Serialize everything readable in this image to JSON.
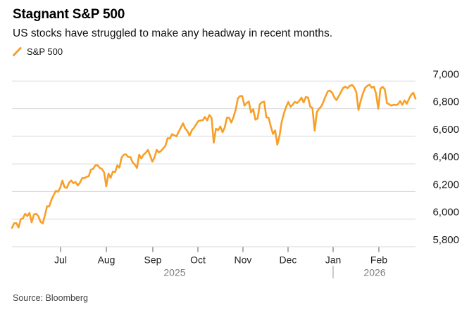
{
  "header": {
    "title": "Stagnant S&P 500",
    "subtitle": "US stocks have struggled to make any headway in recent months."
  },
  "legend": {
    "series_label": "S&P 500",
    "marker": "slash-icon"
  },
  "footer": {
    "source": "Source: Bloomberg"
  },
  "colors": {
    "line": "#F89F28",
    "grid": "#D7D7D7",
    "tick": "#5A5A5A",
    "month_label": "#1F1F1F",
    "year_label": "#7B7B7B",
    "year_divider": "#9A9A9A",
    "y_label": "#1A1A1A",
    "background": "#FFFFFF"
  },
  "chart_data": {
    "type": "line",
    "title": "Stagnant S&P 500",
    "subtitle": "US stocks have struggled to make any headway in recent months.",
    "legend_position": "top-left",
    "grid": true,
    "x_range_visible": "Jun 2025 - Feb 2026",
    "ylim": [
      5800,
      7000
    ],
    "y_axis": {
      "side": "right",
      "ticks": [
        {
          "value": 7000,
          "label": "7,000"
        },
        {
          "value": 6800,
          "label": "6,800"
        },
        {
          "value": 6600,
          "label": "6,600"
        },
        {
          "value": 6400,
          "label": "6,400"
        },
        {
          "value": 6200,
          "label": "6,200"
        },
        {
          "value": 6000,
          "label": "6,000"
        },
        {
          "value": 5800,
          "label": "5,800"
        }
      ]
    },
    "x_axis": {
      "months": [
        {
          "label": "Jul",
          "f": 0.1204
        },
        {
          "label": "Aug",
          "f": 0.2339
        },
        {
          "label": "Sep",
          "f": 0.349
        },
        {
          "label": "Oct",
          "f": 0.4607
        },
        {
          "label": "Nov",
          "f": 0.5724
        },
        {
          "label": "Dec",
          "f": 0.6841
        },
        {
          "label": "Jan",
          "f": 0.7958
        },
        {
          "label": "Feb",
          "f": 0.9092
        }
      ],
      "years": [
        {
          "label": "2025",
          "f": 0.4031
        },
        {
          "label": "2026",
          "f": 0.8988
        }
      ],
      "year_divider_f": 0.7958
    },
    "series": [
      {
        "name": "S&P 500",
        "color": "#F89F28",
        "values": [
          5936,
          5970,
          5971,
          5939,
          6000,
          6006,
          6039,
          6022,
          6045,
          5977,
          6033,
          6039,
          6022,
          5981,
          5968,
          6025,
          6092,
          6092,
          6141,
          6173,
          6205,
          6198,
          6227,
          6279,
          6230,
          6226,
          6263,
          6280,
          6260,
          6269,
          6244,
          6264,
          6297,
          6297,
          6306,
          6310,
          6359,
          6363,
          6389,
          6390,
          6371,
          6363,
          6339,
          6238,
          6330,
          6299,
          6345,
          6340,
          6389,
          6373,
          6446,
          6467,
          6469,
          6450,
          6449,
          6411,
          6396,
          6370,
          6467,
          6439,
          6466,
          6481,
          6502,
          6460,
          6416,
          6448,
          6502,
          6482,
          6495,
          6513,
          6532,
          6587,
          6584,
          6615,
          6607,
          6600,
          6632,
          6664,
          6694,
          6657,
          6638,
          6605,
          6644,
          6661,
          6688,
          6711,
          6715,
          6716,
          6740,
          6715,
          6754,
          6735,
          6553,
          6655,
          6644,
          6671,
          6629,
          6664,
          6735,
          6735,
          6699,
          6738,
          6792,
          6875,
          6891,
          6891,
          6822,
          6840,
          6852,
          6772,
          6796,
          6720,
          6729,
          6832,
          6847,
          6851,
          6737,
          6734,
          6672,
          6617,
          6642,
          6539,
          6603,
          6705,
          6766,
          6813,
          6849,
          6813,
          6829,
          6850,
          6840,
          6858,
          6880,
          6845,
          6885,
          6880,
          6815,
          6805,
          6640,
          6775,
          6800,
          6815,
          6850,
          6890,
          6925,
          6930,
          6915,
          6880,
          6862,
          6890,
          6920,
          6950,
          6960,
          6948,
          6965,
          6972,
          6955,
          6920,
          6790,
          6855,
          6910,
          6950,
          6965,
          6975,
          6952,
          6960,
          6910,
          6800,
          6945,
          6958,
          6940,
          6840,
          6832,
          6822,
          6828,
          6826,
          6832,
          6855,
          6828,
          6860,
          6835,
          6870,
          6900,
          6915,
          6872
        ]
      }
    ]
  }
}
